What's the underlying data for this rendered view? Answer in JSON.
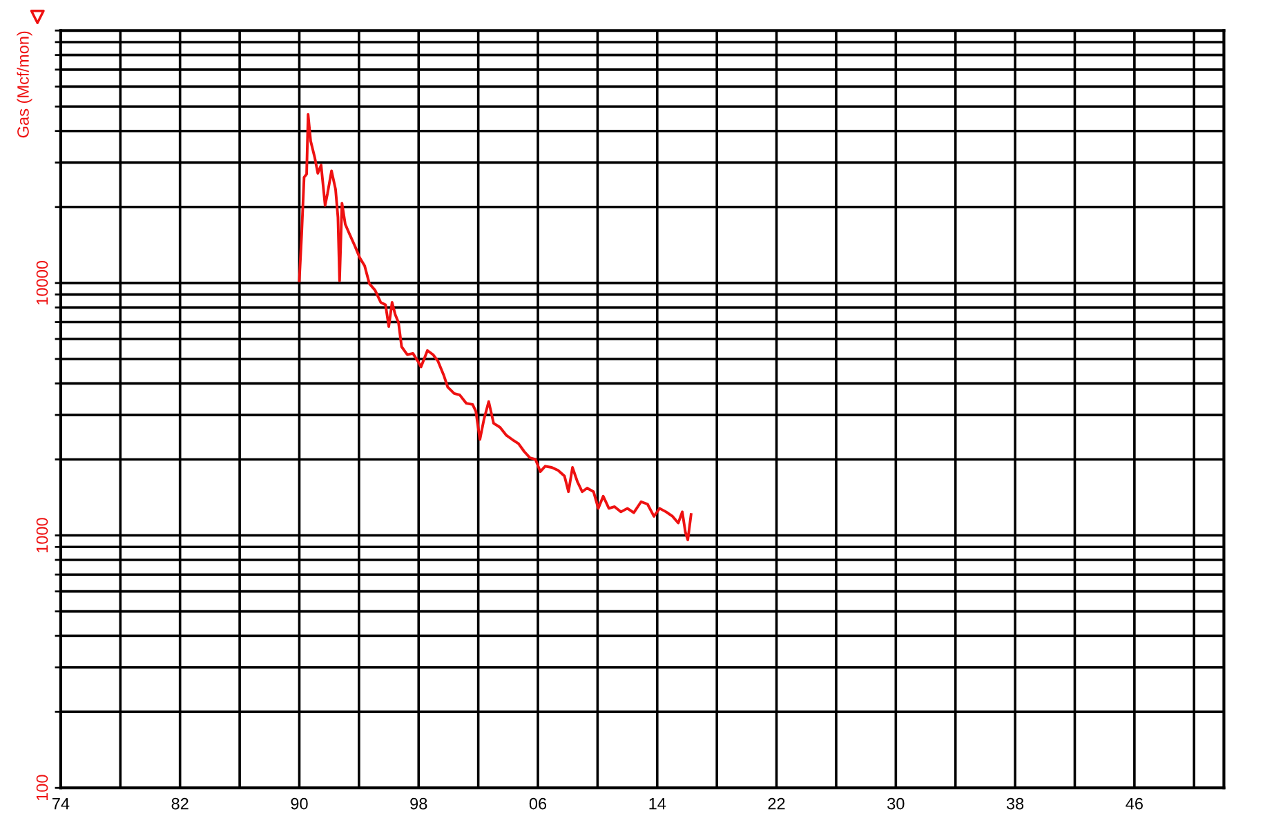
{
  "chart_data": {
    "type": "line",
    "ylabel": "Gas (Mcf/mon)",
    "log": "y",
    "grid": true,
    "marker": "none",
    "line_style": "solid",
    "xlim": [
      1974,
      2052
    ],
    "xticks": [
      {
        "value": 1974,
        "label": "74"
      },
      {
        "value": 1978,
        "label": null
      },
      {
        "value": 1982,
        "label": "82"
      },
      {
        "value": 1986,
        "label": null
      },
      {
        "value": 1990,
        "label": "90"
      },
      {
        "value": 1994,
        "label": null
      },
      {
        "value": 1998,
        "label": "98"
      },
      {
        "value": 2002,
        "label": null
      },
      {
        "value": 2006,
        "label": "06"
      },
      {
        "value": 2010,
        "label": null
      },
      {
        "value": 2014,
        "label": "14"
      },
      {
        "value": 2018,
        "label": null
      },
      {
        "value": 2022,
        "label": "22"
      },
      {
        "value": 2026,
        "label": null
      },
      {
        "value": 2030,
        "label": "30"
      },
      {
        "value": 2034,
        "label": null
      },
      {
        "value": 2038,
        "label": "38"
      },
      {
        "value": 2042,
        "label": null
      },
      {
        "value": 2046,
        "label": "46"
      },
      {
        "value": 2050,
        "label": null
      }
    ],
    "ylim": [
      100,
      100000
    ],
    "yticks": [
      100,
      {
        "value": 200,
        "label": null
      },
      {
        "value": 300,
        "label": null
      },
      {
        "value": 400,
        "label": null
      },
      {
        "value": 500,
        "label": null
      },
      {
        "value": 600,
        "label": null
      },
      {
        "value": 700,
        "label": null
      },
      {
        "value": 800,
        "label": null
      },
      {
        "value": 900,
        "label": null
      },
      1000,
      {
        "value": 2000,
        "label": null
      },
      {
        "value": 3000,
        "label": null
      },
      {
        "value": 4000,
        "label": null
      },
      {
        "value": 5000,
        "label": null
      },
      {
        "value": 6000,
        "label": null
      },
      {
        "value": 7000,
        "label": null
      },
      {
        "value": 8000,
        "label": null
      },
      {
        "value": 9000,
        "label": null
      },
      10000,
      {
        "value": 20000,
        "label": null
      },
      {
        "value": 30000,
        "label": null
      },
      {
        "value": 40000,
        "label": null
      },
      {
        "value": 50000,
        "label": null
      },
      {
        "value": 60000,
        "label": null
      },
      {
        "value": 70000,
        "label": null
      },
      {
        "value": 80000,
        "label": null
      },
      {
        "value": 90000,
        "label": null
      },
      {
        "value": 100000,
        "label": null
      }
    ],
    "series": [
      {
        "color": "#ee1111",
        "x": [
          1990.0,
          1990.16,
          1990.32,
          1990.49,
          1990.59,
          1990.76,
          1991.03,
          1991.24,
          1991.46,
          1991.73,
          1991.89,
          1992.16,
          1992.43,
          1992.59,
          1992.7,
          1992.86,
          1993.08,
          1993.35,
          1993.73,
          1994.05,
          1994.38,
          1994.7,
          1995.08,
          1995.46,
          1995.78,
          1996.0,
          1996.22,
          1996.43,
          1996.65,
          1996.86,
          1997.24,
          1997.62,
          1997.95,
          1998.16,
          1998.59,
          1998.97,
          1999.3,
          1999.68,
          1999.95,
          2000.38,
          2000.76,
          2001.19,
          2001.62,
          2001.84,
          2002.11,
          2002.38,
          2002.7,
          2003.03,
          2003.46,
          2003.89,
          2004.27,
          2004.7,
          2005.08,
          2005.46,
          2005.84,
          2006.16,
          2006.49,
          2006.92,
          2007.35,
          2007.78,
          2008.05,
          2008.32,
          2008.65,
          2008.97,
          2009.3,
          2009.73,
          2010.05,
          2010.38,
          2010.76,
          2011.14,
          2011.57,
          2012.0,
          2012.43,
          2012.92,
          2013.35,
          2013.78,
          2014.16,
          2014.59,
          2015.03,
          2015.41,
          2015.68,
          2015.89,
          2016.05,
          2016.27
        ],
        "values": [
          10200,
          15700,
          26200,
          27000,
          46500,
          36500,
          31500,
          27200,
          29300,
          20300,
          22600,
          27800,
          23500,
          18200,
          10200,
          20700,
          17100,
          15700,
          14000,
          12600,
          11700,
          9930,
          9360,
          8380,
          8200,
          6720,
          8380,
          7500,
          6970,
          5590,
          5200,
          5260,
          4900,
          4650,
          5400,
          5200,
          4900,
          4320,
          3870,
          3650,
          3600,
          3340,
          3300,
          3100,
          2400,
          2880,
          3390,
          2780,
          2680,
          2490,
          2400,
          2310,
          2150,
          2030,
          2000,
          1790,
          1880,
          1860,
          1810,
          1720,
          1490,
          1860,
          1630,
          1490,
          1540,
          1490,
          1280,
          1430,
          1280,
          1300,
          1240,
          1280,
          1230,
          1360,
          1330,
          1190,
          1280,
          1240,
          1190,
          1120,
          1240,
          1030,
          960,
          1210
        ]
      }
    ]
  }
}
